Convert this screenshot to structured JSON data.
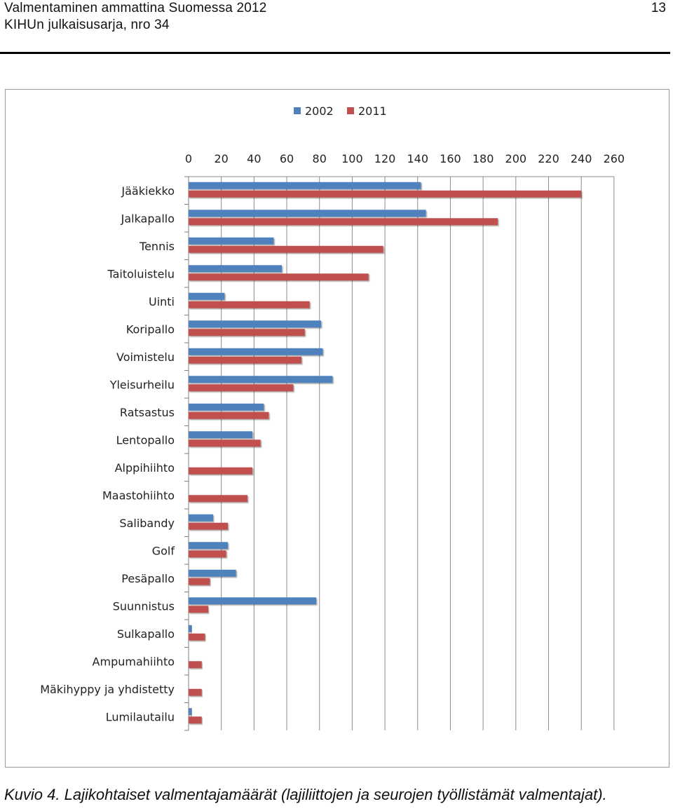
{
  "header": {
    "line1": "Valmentaminen ammattina Suomessa 2012",
    "line2": "KIHUn julkaisusarja, nro 34",
    "page_number": "13"
  },
  "caption": "Kuvio 4. Lajikohtaiset valmentajamäärät (lajiliittojen ja seurojen työllistämät valmentajat).",
  "chart_data": {
    "type": "bar",
    "orientation": "horizontal",
    "title": "",
    "xlabel": "",
    "ylabel": "",
    "xlim": [
      0,
      260
    ],
    "ticks": [
      0,
      20,
      40,
      60,
      80,
      100,
      120,
      140,
      160,
      180,
      200,
      220,
      240,
      260
    ],
    "axis_position": "top",
    "grid": true,
    "legend": "top-center",
    "categories": [
      "Jääkiekko",
      "Jalkapallo",
      "Tennis",
      "Taitoluistelu",
      "Uinti",
      "Koripallo",
      "Voimistelu",
      "Yleisurheilu",
      "Ratsastus",
      "Lentopallo",
      "Alppihiihto",
      "Maastohiihto",
      "Salibandy",
      "Golf",
      "Pesäpallo",
      "Suunnistus",
      "Sulkapallo",
      "Ampumahiihto",
      "Mäkihyppy ja yhdistetty",
      "Lumilautailu"
    ],
    "series": [
      {
        "name": "2002",
        "color": "#4f81bd",
        "values": [
          142,
          145,
          52,
          57,
          22,
          81,
          82,
          88,
          46,
          39,
          0,
          0,
          15,
          24,
          29,
          78,
          2,
          0,
          0,
          2
        ]
      },
      {
        "name": "2011",
        "color": "#c0504d",
        "values": [
          240,
          189,
          119,
          110,
          74,
          71,
          69,
          64,
          49,
          44,
          39,
          36,
          24,
          23,
          13,
          12,
          10,
          8,
          8,
          8
        ]
      }
    ]
  }
}
